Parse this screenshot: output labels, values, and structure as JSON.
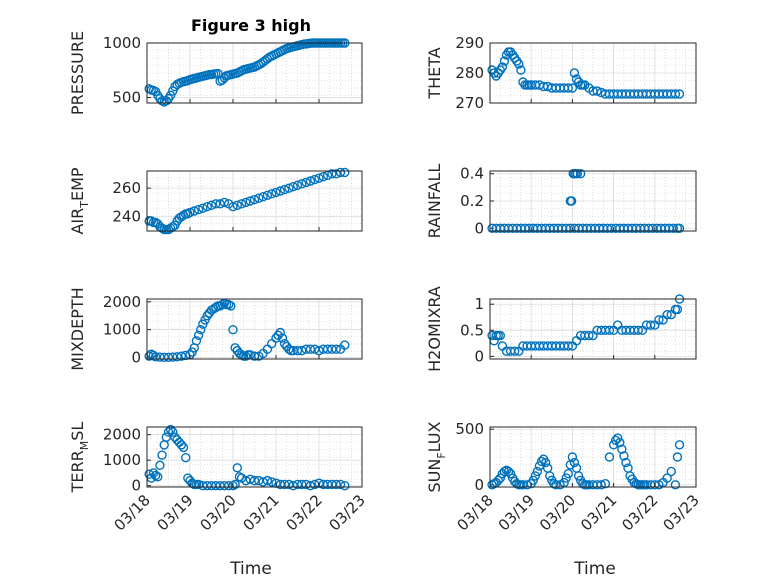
{
  "title": "Figure 3 high",
  "colors": {
    "marker": "#0072BD",
    "axis": "#262626",
    "grid": "#c8c8c8"
  },
  "chart_data": [
    {
      "type": "scatter",
      "ylabel": "PRESSURE",
      "ylabel_parts": [
        "PRESSURE"
      ],
      "ylim": [
        450,
        1000
      ],
      "yticks": [
        500,
        1000
      ],
      "xlim": [
        0,
        5
      ],
      "x": [
        0.05,
        0.1,
        0.15,
        0.2,
        0.25,
        0.3,
        0.35,
        0.4,
        0.45,
        0.5,
        0.55,
        0.6,
        0.65,
        0.7,
        0.75,
        0.8,
        0.85,
        0.9,
        0.95,
        1.0,
        1.05,
        1.1,
        1.15,
        1.2,
        1.25,
        1.3,
        1.35,
        1.4,
        1.45,
        1.5,
        1.55,
        1.6,
        1.65,
        1.7,
        1.75,
        1.8,
        1.85,
        1.9,
        1.95,
        2.0,
        2.05,
        2.1,
        2.15,
        2.2,
        2.25,
        2.3,
        2.35,
        2.4,
        2.45,
        2.5,
        2.55,
        2.6,
        2.65,
        2.7,
        2.75,
        2.8,
        2.85,
        2.9,
        2.95,
        3.0,
        3.05,
        3.1,
        3.15,
        3.2,
        3.25,
        3.3,
        3.35,
        3.4,
        3.45,
        3.5,
        3.55,
        3.6,
        3.65,
        3.7,
        3.75,
        3.8,
        3.85,
        3.9,
        3.95,
        4.0,
        4.05,
        4.1,
        4.15,
        4.2,
        4.25,
        4.3,
        4.35,
        4.4,
        4.45,
        4.5,
        4.55,
        4.6
      ],
      "y": [
        580,
        570,
        565,
        555,
        520,
        490,
        470,
        460,
        470,
        490,
        520,
        560,
        600,
        620,
        630,
        640,
        645,
        650,
        655,
        665,
        670,
        675,
        680,
        685,
        690,
        695,
        700,
        705,
        710,
        712,
        715,
        718,
        720,
        650,
        660,
        680,
        700,
        705,
        710,
        715,
        720,
        725,
        735,
        745,
        755,
        760,
        765,
        770,
        775,
        780,
        790,
        800,
        810,
        825,
        840,
        855,
        870,
        880,
        890,
        900,
        910,
        920,
        930,
        940,
        950,
        955,
        960,
        965,
        970,
        975,
        980,
        985,
        990,
        992,
        995,
        998,
        1000,
        1000,
        1000,
        1000,
        1000,
        1000,
        1000,
        1000,
        1000,
        1000,
        1000,
        1000,
        1000,
        1000,
        1000,
        1000
      ]
    },
    {
      "type": "scatter",
      "ylabel": "THETA",
      "ylabel_parts": [
        "THETA"
      ],
      "ylim": [
        270,
        290
      ],
      "yticks": [
        270,
        280,
        290
      ],
      "xlim": [
        0,
        5
      ],
      "x": [
        0.05,
        0.1,
        0.15,
        0.2,
        0.25,
        0.3,
        0.35,
        0.4,
        0.45,
        0.5,
        0.55,
        0.6,
        0.65,
        0.7,
        0.75,
        0.8,
        0.85,
        0.9,
        0.95,
        1.0,
        1.1,
        1.2,
        1.3,
        1.4,
        1.5,
        1.6,
        1.7,
        1.8,
        1.9,
        2.0,
        2.05,
        2.1,
        2.15,
        2.2,
        2.25,
        2.3,
        2.4,
        2.5,
        2.6,
        2.7,
        2.8,
        2.9,
        3.0,
        3.1,
        3.2,
        3.3,
        3.4,
        3.5,
        3.6,
        3.7,
        3.8,
        3.9,
        4.0,
        4.1,
        4.2,
        4.3,
        4.4,
        4.5,
        4.6
      ],
      "y": [
        281,
        280,
        279,
        280,
        281,
        282,
        284,
        286,
        287,
        287,
        286,
        285,
        284,
        283,
        281,
        277,
        276,
        276,
        276,
        276,
        276,
        276,
        275.5,
        275.5,
        275,
        275,
        275,
        275,
        275,
        275,
        280,
        278,
        277,
        276,
        276,
        276,
        275,
        274,
        274,
        273.5,
        273,
        273,
        273,
        273,
        273,
        273,
        273,
        273,
        273,
        273,
        273,
        273,
        273,
        273,
        273,
        273,
        273,
        273,
        273
      ]
    },
    {
      "type": "scatter",
      "ylabel": "AIR_TEMP",
      "ylabel_parts": [
        "AIR",
        "T",
        "EMP"
      ],
      "ylim": [
        230,
        272
      ],
      "yticks": [
        240,
        260
      ],
      "xlim": [
        0,
        5
      ],
      "x": [
        0.05,
        0.1,
        0.15,
        0.2,
        0.25,
        0.3,
        0.35,
        0.4,
        0.45,
        0.5,
        0.55,
        0.6,
        0.65,
        0.7,
        0.75,
        0.8,
        0.85,
        0.9,
        0.95,
        1.0,
        1.1,
        1.2,
        1.3,
        1.4,
        1.5,
        1.6,
        1.7,
        1.8,
        1.9,
        2.0,
        2.1,
        2.2,
        2.3,
        2.4,
        2.5,
        2.6,
        2.7,
        2.8,
        2.9,
        3.0,
        3.1,
        3.2,
        3.3,
        3.4,
        3.5,
        3.6,
        3.7,
        3.8,
        3.9,
        4.0,
        4.1,
        4.2,
        4.3,
        4.4,
        4.5,
        4.6
      ],
      "y": [
        237,
        237,
        236,
        236,
        235,
        233,
        232,
        231,
        231,
        231,
        232,
        233,
        234,
        237,
        239,
        240,
        241,
        242,
        242,
        243,
        244,
        245,
        246,
        247,
        248,
        249,
        249,
        250,
        249,
        247,
        248,
        249,
        250,
        251,
        252,
        253,
        254,
        255,
        256,
        257,
        258,
        259,
        260,
        261,
        262,
        263,
        264,
        265,
        266,
        267,
        268,
        269,
        270,
        270,
        271,
        271
      ]
    },
    {
      "type": "scatter",
      "ylabel": "RAINFALL",
      "ylabel_parts": [
        "RAINFALL"
      ],
      "ylim": [
        -0.02,
        0.42
      ],
      "yticks": [
        0,
        0.2,
        0.4
      ],
      "xlim": [
        0,
        5
      ],
      "x": [
        0.05,
        0.15,
        0.25,
        0.35,
        0.45,
        0.55,
        0.65,
        0.75,
        0.85,
        0.95,
        1.05,
        1.15,
        1.25,
        1.35,
        1.45,
        1.55,
        1.65,
        1.75,
        1.85,
        1.95,
        2.05,
        2.15,
        2.25,
        2.35,
        2.45,
        2.55,
        2.65,
        2.75,
        2.85,
        2.95,
        3.05,
        3.15,
        3.25,
        3.35,
        3.45,
        3.55,
        3.65,
        3.75,
        3.85,
        3.95,
        4.05,
        4.15,
        4.25,
        4.35,
        4.45,
        4.55,
        4.6,
        1.95,
        1.98,
        2.02,
        2.04,
        2.08,
        2.12,
        2.2
      ],
      "y": [
        0,
        0,
        0,
        0,
        0,
        0,
        0,
        0,
        0,
        0,
        0,
        0,
        0,
        0,
        0,
        0,
        0,
        0,
        0,
        0,
        0,
        0,
        0,
        0,
        0,
        0,
        0,
        0,
        0,
        0,
        0,
        0,
        0,
        0,
        0,
        0,
        0,
        0,
        0,
        0,
        0,
        0,
        0,
        0,
        0,
        0,
        0,
        0.2,
        0.2,
        0.4,
        0.4,
        0.4,
        0.4,
        0.4
      ]
    },
    {
      "type": "scatter",
      "ylabel": "MIXDEPTH",
      "ylabel_parts": [
        "MIXDEPTH"
      ],
      "ylim": [
        -50,
        2100
      ],
      "yticks": [
        0,
        1000,
        2000
      ],
      "xlim": [
        0,
        5
      ],
      "x": [
        0.05,
        0.1,
        0.15,
        0.2,
        0.3,
        0.4,
        0.5,
        0.6,
        0.7,
        0.8,
        0.9,
        1.0,
        1.05,
        1.1,
        1.15,
        1.2,
        1.25,
        1.3,
        1.35,
        1.4,
        1.45,
        1.5,
        1.55,
        1.6,
        1.65,
        1.7,
        1.75,
        1.8,
        1.85,
        1.9,
        1.95,
        2.0,
        2.05,
        2.1,
        2.15,
        2.2,
        2.25,
        2.3,
        2.35,
        2.4,
        2.5,
        2.6,
        2.7,
        2.8,
        2.9,
        3.0,
        3.05,
        3.1,
        3.15,
        3.2,
        3.25,
        3.3,
        3.35,
        3.4,
        3.5,
        3.6,
        3.7,
        3.8,
        3.9,
        4.0,
        4.1,
        4.2,
        4.3,
        4.4,
        4.5,
        4.6
      ],
      "y": [
        50,
        120,
        80,
        30,
        20,
        10,
        10,
        20,
        30,
        50,
        80,
        100,
        200,
        350,
        600,
        800,
        1000,
        1200,
        1350,
        1500,
        1600,
        1700,
        1750,
        1800,
        1850,
        1850,
        1900,
        1950,
        1900,
        1900,
        1850,
        1000,
        350,
        250,
        150,
        100,
        50,
        50,
        100,
        100,
        50,
        50,
        150,
        300,
        500,
        700,
        800,
        900,
        700,
        500,
        400,
        300,
        250,
        250,
        250,
        250,
        300,
        300,
        300,
        250,
        300,
        300,
        300,
        300,
        300,
        450
      ]
    },
    {
      "type": "scatter",
      "ylabel": "H2OMIXRA",
      "ylabel_parts": [
        "H2OMIXRA"
      ],
      "ylim": [
        -0.05,
        1.1
      ],
      "yticks": [
        0,
        0.5,
        1
      ],
      "xlim": [
        0,
        5
      ],
      "x": [
        0.05,
        0.1,
        0.15,
        0.2,
        0.25,
        0.3,
        0.4,
        0.5,
        0.6,
        0.7,
        0.8,
        0.9,
        1.0,
        1.1,
        1.2,
        1.3,
        1.4,
        1.5,
        1.6,
        1.7,
        1.8,
        1.9,
        2.0,
        2.1,
        2.2,
        2.3,
        2.4,
        2.5,
        2.6,
        2.7,
        2.8,
        2.9,
        3.0,
        3.1,
        3.2,
        3.3,
        3.4,
        3.5,
        3.6,
        3.7,
        3.8,
        3.9,
        4.0,
        4.1,
        4.2,
        4.3,
        4.4,
        4.5,
        4.55,
        4.6
      ],
      "y": [
        0.4,
        0.3,
        0.4,
        0.4,
        0.4,
        0.2,
        0.1,
        0.1,
        0.1,
        0.1,
        0.2,
        0.2,
        0.2,
        0.2,
        0.2,
        0.2,
        0.2,
        0.2,
        0.2,
        0.2,
        0.2,
        0.2,
        0.2,
        0.3,
        0.4,
        0.4,
        0.4,
        0.4,
        0.5,
        0.5,
        0.5,
        0.5,
        0.5,
        0.6,
        0.5,
        0.5,
        0.5,
        0.5,
        0.5,
        0.5,
        0.6,
        0.6,
        0.6,
        0.7,
        0.7,
        0.8,
        0.8,
        0.9,
        0.9,
        1.1
      ]
    },
    {
      "type": "scatter",
      "ylabel": "TERR_MSL",
      "ylabel_parts": [
        "TERR",
        "M",
        "SL"
      ],
      "ylim": [
        -50,
        2300
      ],
      "yticks": [
        0,
        1000,
        2000
      ],
      "xlim": [
        0,
        5
      ],
      "x": [
        0.05,
        0.1,
        0.15,
        0.2,
        0.25,
        0.3,
        0.35,
        0.4,
        0.45,
        0.5,
        0.55,
        0.6,
        0.65,
        0.7,
        0.75,
        0.8,
        0.85,
        0.9,
        0.95,
        1.0,
        1.05,
        1.1,
        1.15,
        1.2,
        1.3,
        1.4,
        1.5,
        1.6,
        1.7,
        1.8,
        1.9,
        2.0,
        2.05,
        2.1,
        2.15,
        2.2,
        2.3,
        2.4,
        2.5,
        2.6,
        2.7,
        2.8,
        2.9,
        3.0,
        3.1,
        3.2,
        3.3,
        3.4,
        3.5,
        3.6,
        3.7,
        3.8,
        3.9,
        4.0,
        4.1,
        4.2,
        4.3,
        4.4,
        4.5,
        4.6
      ],
      "y": [
        450,
        300,
        500,
        400,
        350,
        800,
        1200,
        1600,
        1900,
        2100,
        2200,
        2100,
        1900,
        1800,
        1700,
        1600,
        1500,
        1100,
        300,
        200,
        100,
        50,
        50,
        50,
        0,
        0,
        0,
        0,
        0,
        0,
        0,
        0,
        50,
        700,
        350,
        300,
        200,
        250,
        200,
        200,
        150,
        200,
        150,
        100,
        50,
        50,
        50,
        0,
        50,
        50,
        50,
        0,
        50,
        100,
        50,
        50,
        50,
        50,
        50,
        0
      ]
    },
    {
      "type": "scatter",
      "ylabel": "SUN_FLUX",
      "ylabel_parts": [
        "SUN",
        "F",
        "LUX"
      ],
      "ylim": [
        -20,
        520
      ],
      "yticks": [
        0,
        500
      ],
      "xlim": [
        0,
        5
      ],
      "x": [
        0.05,
        0.1,
        0.15,
        0.2,
        0.25,
        0.3,
        0.35,
        0.4,
        0.45,
        0.5,
        0.55,
        0.6,
        0.65,
        0.7,
        0.75,
        0.8,
        0.9,
        1.0,
        1.05,
        1.1,
        1.15,
        1.2,
        1.25,
        1.3,
        1.35,
        1.4,
        1.45,
        1.5,
        1.55,
        1.6,
        1.7,
        1.8,
        1.85,
        1.9,
        1.95,
        2.0,
        2.05,
        2.1,
        2.15,
        2.2,
        2.25,
        2.3,
        2.35,
        2.4,
        2.5,
        2.6,
        2.7,
        2.8,
        2.9,
        3.0,
        3.05,
        3.1,
        3.15,
        3.2,
        3.25,
        3.3,
        3.35,
        3.4,
        3.45,
        3.5,
        3.55,
        3.6,
        3.65,
        3.7,
        3.75,
        3.8,
        3.9,
        4.0,
        4.1,
        4.2,
        4.3,
        4.4,
        4.5,
        4.55,
        4.6
      ],
      "y": [
        0,
        10,
        20,
        40,
        60,
        100,
        120,
        130,
        120,
        100,
        60,
        30,
        10,
        0,
        0,
        0,
        0,
        10,
        40,
        80,
        120,
        170,
        210,
        230,
        200,
        150,
        80,
        40,
        10,
        0,
        0,
        20,
        60,
        100,
        180,
        250,
        200,
        150,
        80,
        40,
        10,
        0,
        0,
        0,
        0,
        0,
        0,
        10,
        250,
        360,
        400,
        420,
        380,
        320,
        260,
        200,
        150,
        80,
        50,
        20,
        10,
        0,
        0,
        0,
        0,
        0,
        0,
        0,
        0,
        20,
        60,
        120,
        0,
        250,
        360
      ]
    }
  ],
  "xticks": [
    "03/18",
    "03/19",
    "03/20",
    "03/21",
    "03/22",
    "03/23"
  ],
  "xlabel": "Time"
}
